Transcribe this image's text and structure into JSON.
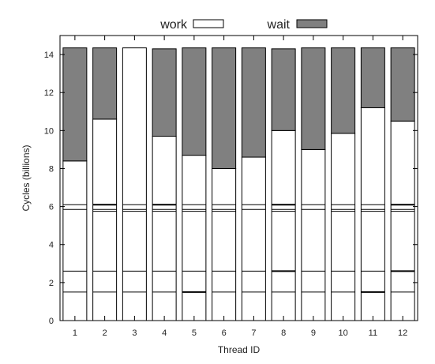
{
  "chart_data": {
    "type": "bar",
    "stacked": true,
    "xlabel": "Thread ID",
    "ylabel": "Cycles (billions)",
    "ylim": [
      0,
      15
    ],
    "yticks": [
      0,
      2,
      4,
      6,
      8,
      10,
      12,
      14
    ],
    "grid": false,
    "legend_position": "top-center",
    "categories": [
      "1",
      "2",
      "3",
      "4",
      "5",
      "6",
      "7",
      "8",
      "9",
      "10",
      "11",
      "12"
    ],
    "series": [
      {
        "name": "work",
        "color": "#ffffff",
        "values": [
          8.4,
          10.6,
          14.35,
          9.7,
          8.7,
          8.0,
          8.6,
          10.0,
          9.0,
          9.85,
          11.2,
          10.5
        ]
      },
      {
        "name": "wait",
        "color": "#808080",
        "values": [
          5.95,
          3.75,
          0.0,
          4.6,
          5.65,
          6.35,
          5.75,
          4.3,
          5.35,
          4.5,
          3.15,
          3.85
        ]
      }
    ],
    "work_segment_boundaries": [
      [
        1.5,
        2.6,
        5.85,
        6.1
      ],
      [
        1.5,
        2.6,
        5.75,
        5.85,
        6.1
      ],
      [
        1.5,
        2.6,
        5.75,
        5.85,
        6.1
      ],
      [
        1.5,
        2.6,
        5.75,
        5.85,
        6.1
      ],
      [
        1.5,
        2.6,
        5.75,
        5.85,
        6.1
      ],
      [
        1.5,
        2.6,
        5.75,
        5.85,
        6.1
      ],
      [
        1.5,
        2.6,
        5.85,
        6.1
      ],
      [
        1.5,
        2.6,
        5.75,
        5.85,
        6.1
      ],
      [
        1.5,
        2.6,
        5.85,
        6.1
      ],
      [
        1.5,
        2.6,
        5.75,
        5.85,
        6.1
      ],
      [
        1.5,
        2.6,
        5.75,
        5.85,
        6.1
      ],
      [
        1.5,
        2.6,
        5.75,
        5.85,
        6.1
      ]
    ],
    "emphasized_boundaries": [
      [],
      [
        6.1
      ],
      [],
      [
        6.1
      ],
      [
        1.5
      ],
      [],
      [],
      [
        2.6,
        6.1
      ],
      [],
      [],
      [
        1.5
      ],
      [
        2.6,
        6.1
      ]
    ]
  }
}
